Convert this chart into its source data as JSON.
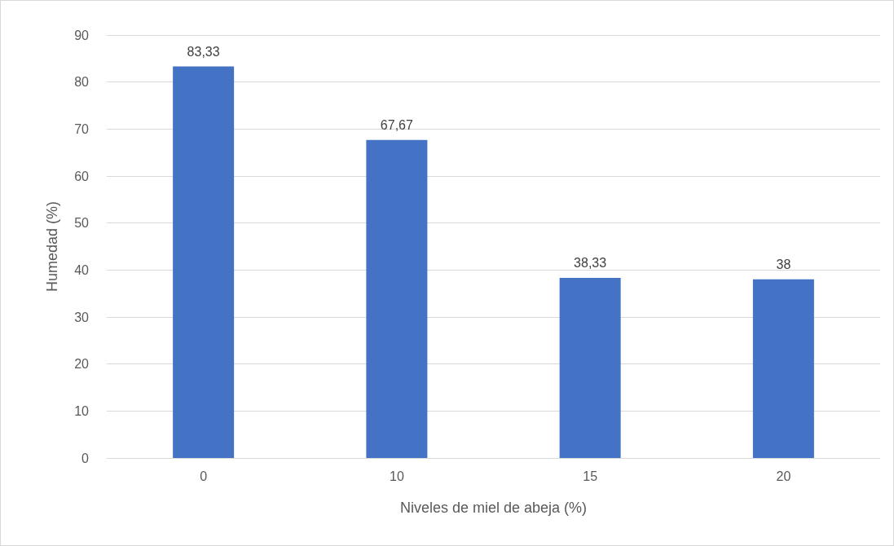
{
  "chart_data": {
    "type": "bar",
    "xlabel": "Niveles de miel de abeja (%)",
    "ylabel": "Humedad (%)",
    "categories": [
      "0",
      "10",
      "15",
      "20"
    ],
    "values": [
      83.33,
      67.67,
      38.33,
      38
    ],
    "value_labels": [
      "83,33",
      "67,67",
      "38,33",
      "38"
    ],
    "color": "#4472c4",
    "ylim": [
      0,
      90
    ],
    "yticks": [
      0,
      10,
      20,
      30,
      40,
      50,
      60,
      70,
      80,
      90
    ],
    "grid": "y"
  }
}
